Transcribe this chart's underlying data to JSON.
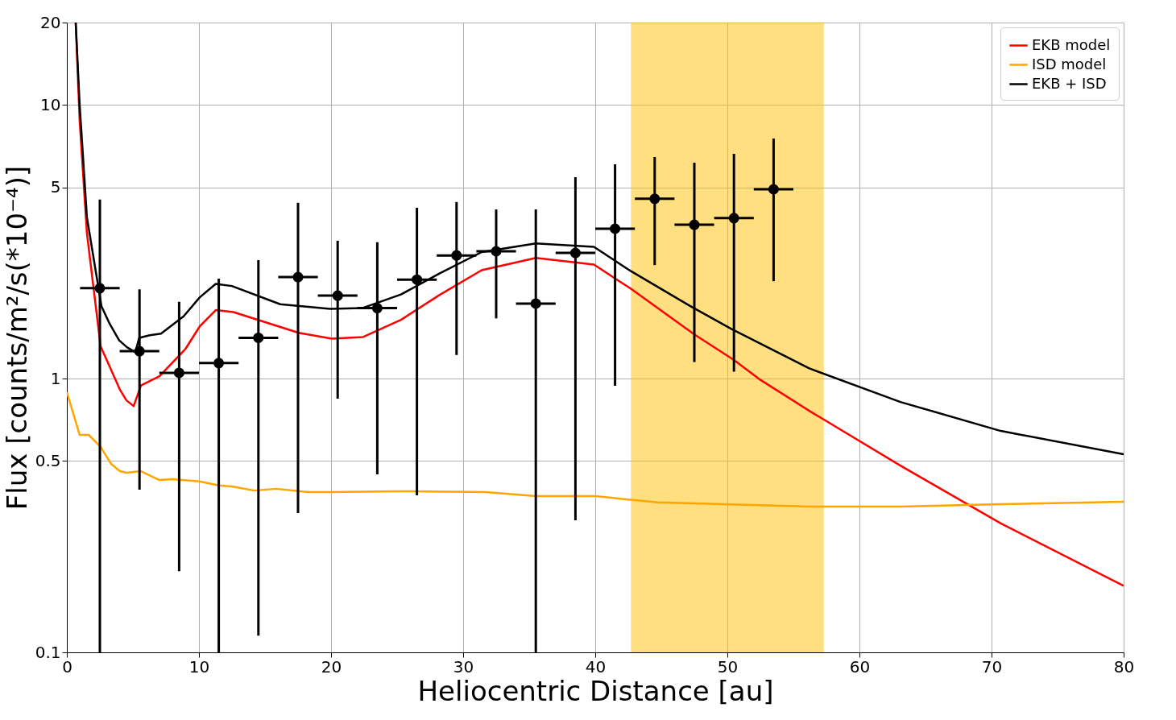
{
  "chart_data": {
    "type": "line",
    "xlabel": "Heliocentric Distance [au]",
    "ylabel": "Flux [counts/m²/s(*10⁻⁴)]",
    "xlim": [
      0,
      80
    ],
    "xticks": [
      0,
      10,
      20,
      30,
      40,
      50,
      60,
      70,
      80
    ],
    "ylim": [
      0.1,
      20
    ],
    "yticks": [
      0.1,
      0.5,
      1,
      5,
      10,
      20
    ],
    "log": "y",
    "grid": true,
    "legend": "top right",
    "line_style": "solid",
    "series": [
      {
        "name": "EKB model",
        "color": "#ff0000",
        "x": [
          0.67,
          0.97,
          1.52,
          2.56,
          3.23,
          4.02,
          4.51,
          5.06,
          5.61,
          7.01,
          8.96,
          10.05,
          11.27,
          12.61,
          17.55,
          20.05,
          22.43,
          25.29,
          28.2,
          31.4,
          35.5,
          39.9,
          42.7,
          47.5,
          50.5,
          52.5,
          56.2,
          63.1,
          70.7,
          80
        ],
        "values": [
          20,
          8.75,
          3.39,
          1.31,
          1.11,
          0.911,
          0.833,
          0.794,
          0.944,
          1.02,
          1.28,
          1.55,
          1.78,
          1.75,
          1.47,
          1.4,
          1.42,
          1.64,
          2.02,
          2.49,
          2.76,
          2.61,
          2.13,
          1.45,
          1.17,
          0.99,
          0.763,
          0.481,
          0.296,
          0.175
        ]
      },
      {
        "name": "ISD model",
        "color": "#ffa500",
        "x": [
          0,
          0.97,
          1.65,
          2.56,
          3.35,
          4.02,
          4.51,
          5.61,
          7.01,
          7.98,
          10.05,
          11.52,
          12.49,
          14.2,
          15.84,
          18.22,
          20.1,
          24.9,
          31.7,
          35.5,
          40.0,
          44.7,
          56.2,
          63.1,
          70.7,
          80
        ],
        "values": [
          0.892,
          0.623,
          0.623,
          0.563,
          0.488,
          0.459,
          0.453,
          0.459,
          0.426,
          0.429,
          0.421,
          0.407,
          0.404,
          0.39,
          0.396,
          0.385,
          0.385,
          0.388,
          0.385,
          0.372,
          0.372,
          0.353,
          0.341,
          0.341,
          0.348,
          0.355
        ]
      },
      {
        "name": "EKB + ISD",
        "color": "#000000",
        "x": [
          0.67,
          0.97,
          1.52,
          2.62,
          3.23,
          3.96,
          4.57,
          5.18,
          5.48,
          6.28,
          7.13,
          8.84,
          10.05,
          11.27,
          12.49,
          16.15,
          19.93,
          22.36,
          25.29,
          28.2,
          31.4,
          35.5,
          39.9,
          42.7,
          47.2,
          50.3,
          56.2,
          63.1,
          70.7,
          80
        ],
        "values": [
          20,
          10,
          3.88,
          1.84,
          1.59,
          1.38,
          1.3,
          1.25,
          1.41,
          1.44,
          1.46,
          1.69,
          1.98,
          2.22,
          2.18,
          1.87,
          1.8,
          1.81,
          2.03,
          2.42,
          2.9,
          3.12,
          3.03,
          2.47,
          1.84,
          1.52,
          1.09,
          0.822,
          0.644,
          0.529
        ]
      },
      {
        "type": "scatter",
        "marker": "circle",
        "color": "#000000",
        "x": [
          2.5,
          5.5,
          8.5,
          11.5,
          14.5,
          17.5,
          20.5,
          23.5,
          26.5,
          29.5,
          32.5,
          35.5,
          38.5,
          41.5,
          44.5,
          47.5,
          50.5,
          53.5
        ],
        "values": [
          2.14,
          1.26,
          1.05,
          1.14,
          1.41,
          2.35,
          2.01,
          1.81,
          2.3,
          2.82,
          2.92,
          1.88,
          2.88,
          3.53,
          4.54,
          3.65,
          3.86,
          4.92
        ],
        "errors": [
          [
            0.1,
            4.51
          ],
          [
            0.393,
            2.12
          ],
          [
            0.198,
            1.91
          ],
          [
            0.1,
            2.32
          ],
          [
            0.115,
            2.71
          ],
          [
            0.323,
            4.39
          ],
          [
            0.845,
            3.19
          ],
          [
            0.447,
            3.15
          ],
          [
            0.375,
            4.21
          ],
          [
            1.22,
            4.42
          ],
          [
            1.66,
            4.15
          ],
          [
            0.1,
            4.15
          ],
          [
            0.304,
            5.45
          ],
          [
            0.942,
            6.07
          ],
          [
            2.6,
            6.45
          ],
          [
            1.15,
            6.15
          ],
          [
            1.06,
            6.63
          ],
          [
            2.27,
            7.54
          ]
        ],
        "xerrors": [
          1.5,
          1.5,
          1.5,
          1.5,
          1.5,
          1.5,
          1.5,
          1.5,
          1.5,
          1.5,
          1.5,
          1.5,
          1.5,
          1.5,
          1.5,
          1.5,
          1.5,
          1.5
        ]
      }
    ],
    "bands": [
      {
        "axis": "x",
        "from": 42.7,
        "to": 57.3,
        "color": "#ffbf00"
      }
    ]
  }
}
